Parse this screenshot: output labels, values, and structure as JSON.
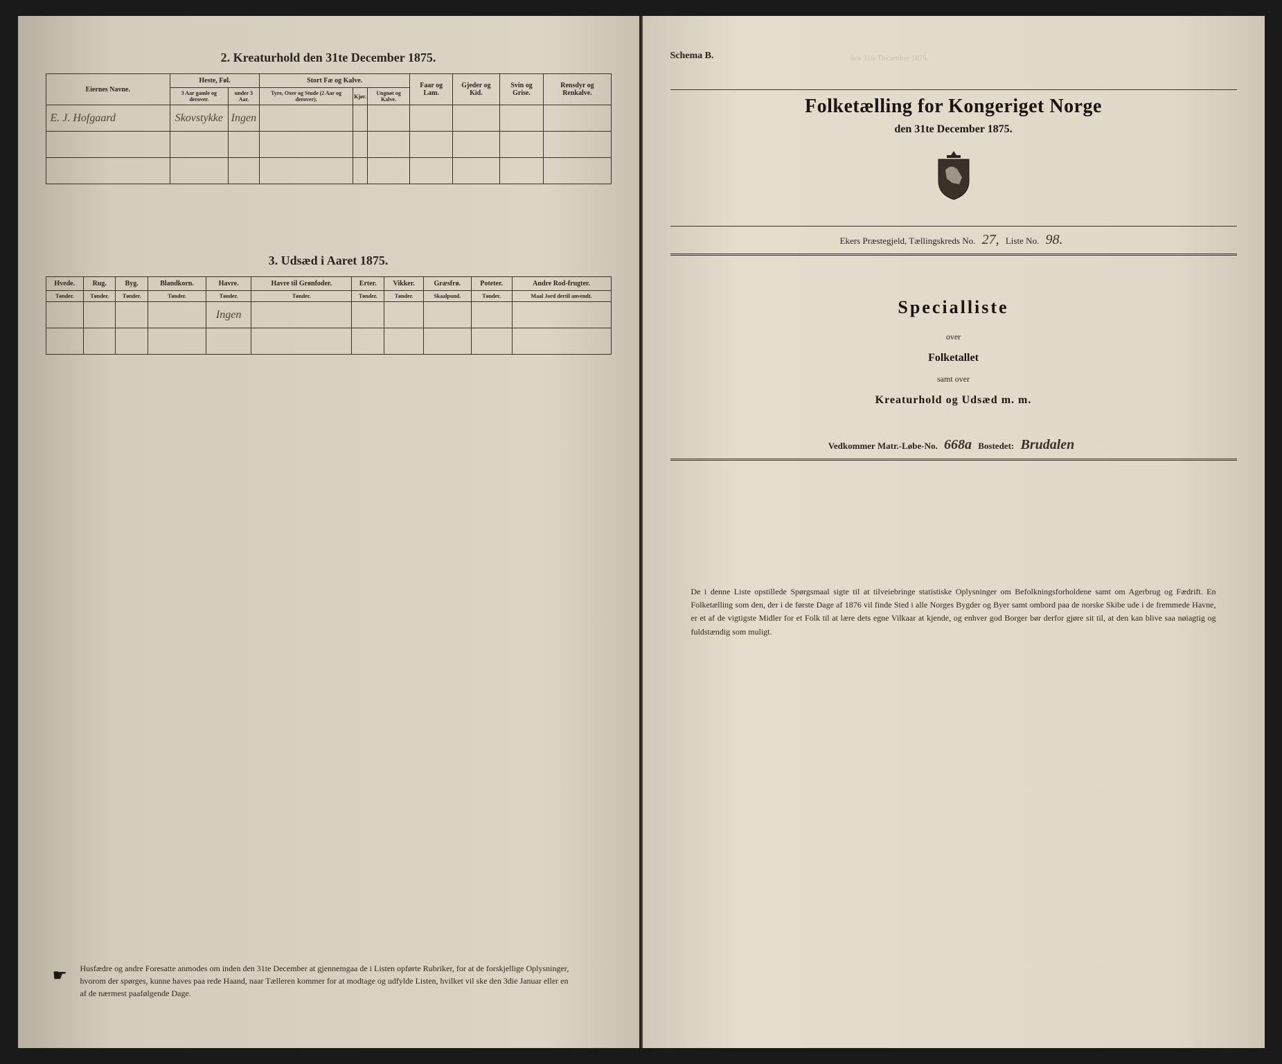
{
  "left_page": {
    "section2": {
      "title": "2. Kreaturhold den 31te December 1875.",
      "group_headers": [
        "Eiernes Navne.",
        "Heste, Føl.",
        "Stort Fæ og Kalve.",
        "Faar og Lam.",
        "Gjeder og Kid.",
        "Svin og Grise.",
        "Rensdyr og Renkalve."
      ],
      "sub_headers": [
        "3 Aar gamle og derover.",
        "under 3 Aar.",
        "Tyre, Oxer og Stude (2 Aar og derover).",
        "Kjør.",
        "Ungnøt og Kalve."
      ],
      "row1": {
        "name": "E. J. Hofgaard",
        "col1": "Skovstykke",
        "col2": "Ingen"
      }
    },
    "section3": {
      "title": "3. Udsæd i Aaret 1875.",
      "headers": [
        {
          "h": "Hvede.",
          "s": "Tønder."
        },
        {
          "h": "Rug.",
          "s": "Tønder."
        },
        {
          "h": "Byg.",
          "s": "Tønder."
        },
        {
          "h": "Blandkorn.",
          "s": "Tønder."
        },
        {
          "h": "Havre.",
          "s": "Tønder."
        },
        {
          "h": "Havre til Grønfoder.",
          "s": "Tønder."
        },
        {
          "h": "Erter.",
          "s": "Tønder."
        },
        {
          "h": "Vikker.",
          "s": "Tønder."
        },
        {
          "h": "Græsfrø.",
          "s": "Skaalpund."
        },
        {
          "h": "Poteter.",
          "s": "Tønder."
        },
        {
          "h": "Andre Rod-frugter.",
          "s": "Maal Jord dertil anvendt."
        }
      ],
      "row1_col5": "Ingen"
    },
    "footer": "Husfædre og andre Foresatte anmodes om inden den 31te December at gjennemgaa de i Listen opførte Rubriker, for at de forskjellige Oplysninger, hvorom der spørges, kunne haves paa rede Haand, naar Tælleren kommer for at modtage og udfylde Listen, hvilket vil ske den 3die Januar eller en af de nærmest paafølgende Dage."
  },
  "right_page": {
    "schema": "Schema B.",
    "bleed_text": "den 31te December 1875.",
    "title": "Folketælling for Kongeriget Norge",
    "subtitle": "den 31te December 1875.",
    "ref": {
      "prefix": "Ekers Præstegjeld, Tællingskreds No.",
      "kreds_no": "27,",
      "liste_label": "Liste No.",
      "liste_no": "98."
    },
    "special": "Specialliste",
    "over": "over",
    "folketallet": "Folketallet",
    "samt": "samt over",
    "kreatur": "Kreaturhold og Udsæd m. m.",
    "matr": {
      "prefix": "Vedkommer Matr.-Løbe-No.",
      "no": "668a",
      "bosted_label": "Bostedet:",
      "bosted": "Brudalen"
    },
    "bottom": "De i denne Liste opstillede Spørgsmaal sigte til at tilveiebringe statistiske Oplysninger om Befolkningsforholdene samt om Agerbrug og Fædrift. En Folketælling som den, der i de første Dage af 1876 vil finde Sted i alle Norges Bygder og Byer samt ombord paa de norske Skibe ude i de fremmede Havne, er et af de vigtigste Midler for et Folk til at lære dets egne Vilkaar at kjende, og enhver god Borger bør derfor gjøre sit til, at den kan blive saa nøiagtig og fuldstændig som muligt."
  },
  "colors": {
    "ink": "#2a2520",
    "paper_left": "#dcd4c4",
    "paper_right": "#e4dccc",
    "spine": "#2a2520"
  }
}
